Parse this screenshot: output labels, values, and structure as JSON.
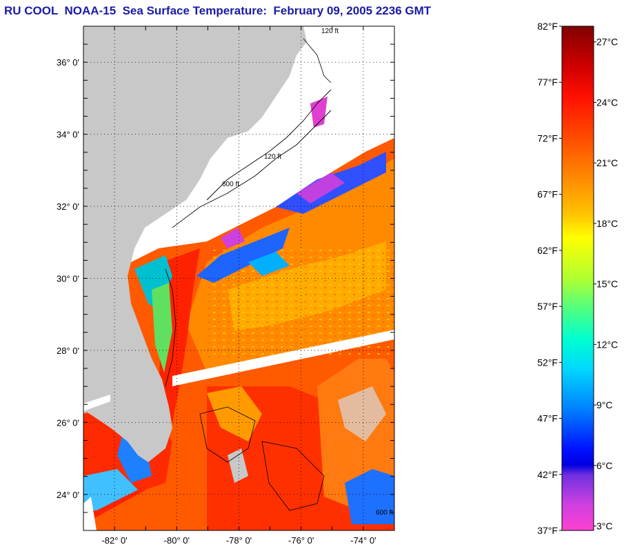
{
  "title": "RU COOL  NOAA-15  Sea Surface Temperature:  February 09, 2005 2236 GMT",
  "map": {
    "lat_labels": [
      "36° 0'",
      "34° 0'",
      "32° 0'",
      "30° 0'",
      "28° 0'",
      "26° 0'",
      "24° 0'"
    ],
    "lon_labels": [
      "-82° 0'",
      "-80° 0'",
      "-78° 0'",
      "-76° 0'",
      "-74° 0'"
    ],
    "lat_values": [
      36,
      34,
      32,
      30,
      28,
      26,
      24
    ],
    "lon_values": [
      -82,
      -80,
      -78,
      -76,
      -74
    ],
    "lat_range": [
      23,
      37
    ],
    "lon_range": [
      -83,
      -73
    ],
    "contour_labels": [
      "120 ft",
      "600 ft"
    ],
    "colors": {
      "land": "#c8c8c8",
      "nodata": "#ffffff",
      "grid": "#000000"
    }
  },
  "colorbar": {
    "f_labels": [
      "82°F",
      "77°F",
      "72°F",
      "67°F",
      "62°F",
      "57°F",
      "52°F",
      "47°F",
      "42°F",
      "37°F"
    ],
    "c_labels": [
      "27°C",
      "24°C",
      "21°C",
      "18°C",
      "15°C",
      "12°C",
      "9°C",
      "6°C",
      "3°C"
    ],
    "f_range": [
      37,
      82
    ]
  }
}
